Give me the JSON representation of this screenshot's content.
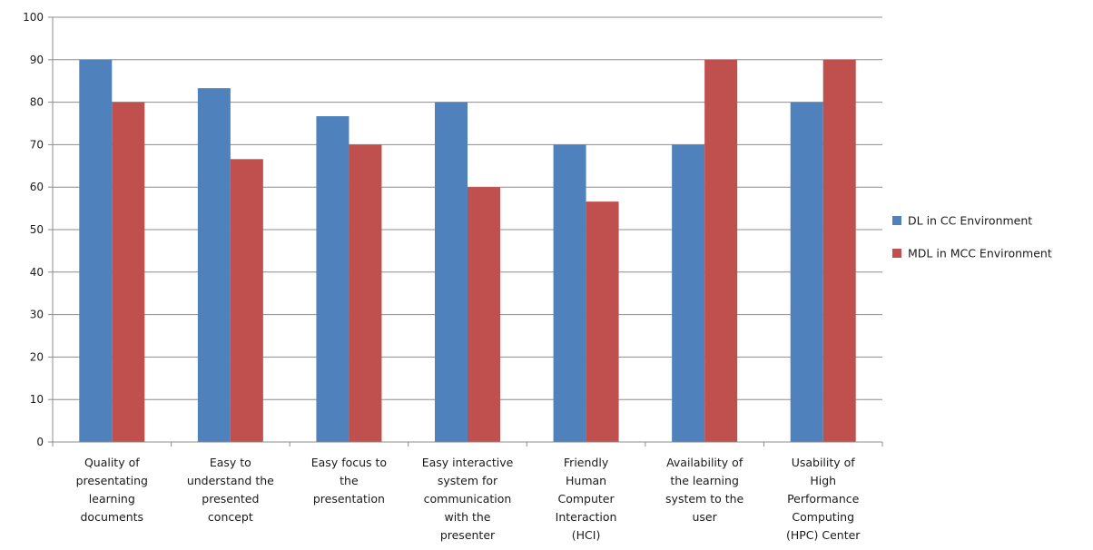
{
  "chart_data": {
    "type": "bar",
    "categories": [
      [
        "Quality of",
        "presentating",
        "learning",
        "documents"
      ],
      [
        "Easy to",
        "understand the",
        "presented",
        "concept"
      ],
      [
        "Easy focus to",
        "the",
        "presentation"
      ],
      [
        "Easy interactive",
        "system for",
        "communication",
        "with the",
        "presenter"
      ],
      [
        "Friendly",
        "Human",
        "Computer",
        "Interaction",
        "(HCI)"
      ],
      [
        "Availability of",
        "the learning",
        "system to the",
        "user"
      ],
      [
        "Usability of",
        "High",
        "Performance",
        "Computing",
        "(HPC) Center"
      ]
    ],
    "series": [
      {
        "name": "DL in CC Environment",
        "color": "#4F81BD",
        "values": [
          90,
          83.3,
          76.7,
          80,
          70,
          70,
          80
        ]
      },
      {
        "name": "MDL in MCC Environment",
        "color": "#C0504D",
        "values": [
          80,
          66.6,
          70,
          60,
          56.6,
          90,
          90
        ]
      }
    ],
    "ylim": [
      0,
      100
    ],
    "yticks": [
      0,
      10,
      20,
      30,
      40,
      50,
      60,
      70,
      80,
      90,
      100
    ],
    "grid": true,
    "legend": "right",
    "title": "",
    "xlabel": "",
    "ylabel": ""
  }
}
